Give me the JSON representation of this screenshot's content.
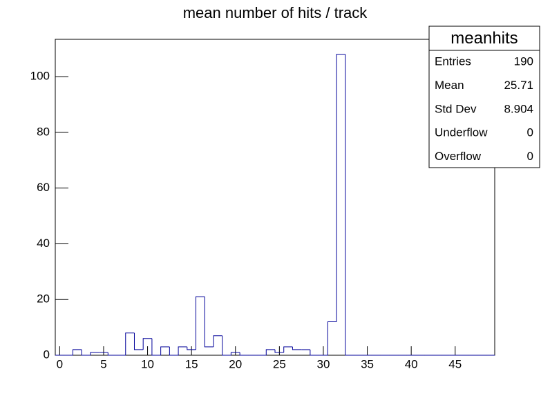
{
  "chart_data": {
    "type": "histogram",
    "title": "mean number of hits / track",
    "bins": [
      -0.5,
      0.5,
      1.5,
      2.5,
      3.5,
      4.5,
      5.5,
      6.5,
      7.5,
      8.5,
      9.5,
      10.5,
      11.5,
      12.5,
      13.5,
      14.5,
      15.5,
      16.5,
      17.5,
      18.5,
      19.5,
      20.5,
      21.5,
      22.5,
      23.5,
      24.5,
      25.5,
      26.5,
      27.5,
      28.5,
      29.5,
      30.5,
      31.5,
      32.5,
      33.5,
      34.5,
      35.5,
      36.5,
      37.5,
      38.5,
      39.5,
      40.5,
      41.5,
      42.5,
      43.5,
      44.5,
      45.5,
      46.5,
      47.5,
      48.5,
      49.5
    ],
    "counts": [
      0,
      0,
      2,
      0,
      1,
      1,
      0,
      0,
      8,
      2,
      6,
      0,
      3,
      0,
      3,
      2,
      21,
      3,
      7,
      0,
      1,
      0,
      0,
      0,
      2,
      1,
      3,
      2,
      2,
      0,
      0,
      12,
      108,
      0,
      0,
      0,
      0,
      0,
      0,
      0,
      0,
      0,
      0,
      0,
      0,
      0,
      0,
      0,
      0,
      0
    ],
    "color": "#000099",
    "xlim": [
      -0.5,
      49.5
    ],
    "xticks": [
      0,
      5,
      10,
      15,
      20,
      25,
      30,
      35,
      40,
      45
    ],
    "ylim": [
      0,
      113.4
    ],
    "yticks": [
      0,
      20,
      40,
      60,
      80,
      100
    ],
    "stats": {
      "title": "meanhits",
      "rows": [
        [
          "Entries",
          190
        ],
        [
          "Mean",
          25.71
        ],
        [
          "Std Dev",
          8.904
        ],
        [
          "Underflow",
          0
        ],
        [
          "Overflow",
          0
        ]
      ]
    }
  }
}
